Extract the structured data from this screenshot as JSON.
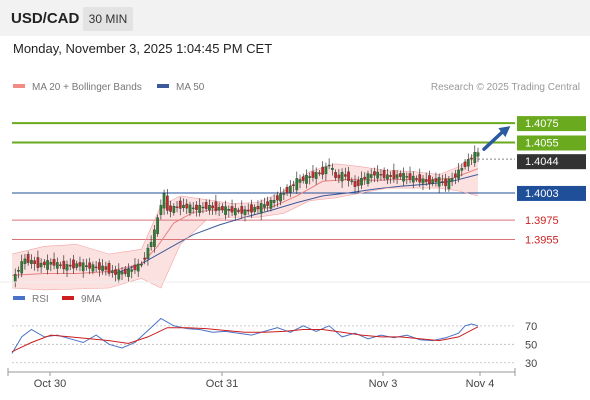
{
  "header": {
    "symbol": "USD/CAD",
    "timeframe": "30 MIN",
    "datetime": "Monday, November 3, 2025 1:04:45 PM CET"
  },
  "colors": {
    "up": "#2e7d32",
    "down": "#c62828",
    "bollinger": "#f4a3a3",
    "band_fill": "#fbd9d9",
    "ma50": "#3c5a99",
    "green_line": "#6aaa1e",
    "blue_line": "#1f4f99",
    "red_line": "#d9747a",
    "rsi": "#4a72c8",
    "rsi_ma": "#cc1f1f",
    "arrow": "#2c5aa0",
    "label_dark": "#333333"
  },
  "chart_data": [
    {
      "type": "candlestick",
      "instrument": "USD/CAD",
      "timeframe": "30 MIN",
      "legend": [
        {
          "name": "MA 20 + Bollinger Bands",
          "color": "#f28b82"
        },
        {
          "name": "MA 50",
          "color": "#3c5a99"
        }
      ],
      "source_note": "Research © 2025 Trading Central",
      "x_ticks": [
        "Oct 30",
        "Oct 31",
        "Nov 3",
        "Nov 4"
      ],
      "ylim": [
        1.3905,
        1.4105
      ],
      "price_levels": [
        {
          "label": "1.4075",
          "value": 1.4075,
          "color": "#6aaa1e",
          "style": "green-line"
        },
        {
          "label": "1.4055",
          "value": 1.4055,
          "color": "#6aaa1e",
          "style": "green-line"
        },
        {
          "label": "1.4044",
          "value": 1.4044,
          "color": "#333333",
          "style": "current-price"
        },
        {
          "label": "1.4003",
          "value": 1.4003,
          "color": "#1f4f99",
          "style": "blue-line"
        },
        {
          "label": "1.3975",
          "value": 1.3975,
          "color": "#d9747a",
          "style": "red-line"
        },
        {
          "label": "1.3955",
          "value": 1.3955,
          "color": "#d9747a",
          "style": "red-line"
        }
      ],
      "close_path": [
        [
          0,
          1.3912
        ],
        [
          2,
          1.3925
        ],
        [
          4,
          1.3935
        ],
        [
          8,
          1.3929
        ],
        [
          12,
          1.3931
        ],
        [
          16,
          1.3927
        ],
        [
          20,
          1.3929
        ],
        [
          24,
          1.3927
        ],
        [
          28,
          1.3926
        ],
        [
          32,
          1.392
        ],
        [
          36,
          1.3922
        ],
        [
          40,
          1.393
        ],
        [
          42,
          1.3945
        ],
        [
          44,
          1.3962
        ],
        [
          46,
          1.3992
        ],
        [
          47,
          1.4
        ],
        [
          48,
          1.3985
        ],
        [
          52,
          1.399
        ],
        [
          56,
          1.3987
        ],
        [
          60,
          1.3989
        ],
        [
          64,
          1.3987
        ],
        [
          68,
          1.3985
        ],
        [
          72,
          1.3984
        ],
        [
          76,
          1.3988
        ],
        [
          80,
          1.3993
        ],
        [
          84,
          1.4003
        ],
        [
          88,
          1.4015
        ],
        [
          92,
          1.402
        ],
        [
          96,
          1.4025
        ],
        [
          98,
          1.4033
        ],
        [
          100,
          1.4018
        ],
        [
          102,
          1.4022
        ],
        [
          104,
          1.4018
        ],
        [
          106,
          1.401
        ],
        [
          108,
          1.4017
        ],
        [
          112,
          1.4023
        ],
        [
          116,
          1.402
        ],
        [
          120,
          1.4021
        ],
        [
          124,
          1.4018
        ],
        [
          128,
          1.4015
        ],
        [
          132,
          1.4016
        ],
        [
          134,
          1.4012
        ],
        [
          136,
          1.4018
        ],
        [
          138,
          1.4025
        ],
        [
          140,
          1.4033
        ],
        [
          142,
          1.404
        ],
        [
          144,
          1.4044
        ]
      ],
      "ma20_path": [
        [
          0,
          1.3918
        ],
        [
          10,
          1.392
        ],
        [
          20,
          1.392
        ],
        [
          30,
          1.3922
        ],
        [
          40,
          1.393
        ],
        [
          45,
          1.3948
        ],
        [
          50,
          1.3972
        ],
        [
          56,
          1.3983
        ],
        [
          64,
          1.3986
        ],
        [
          72,
          1.3985
        ],
        [
          80,
          1.3988
        ],
        [
          88,
          1.4
        ],
        [
          96,
          1.4015
        ],
        [
          104,
          1.4017
        ],
        [
          112,
          1.4016
        ],
        [
          120,
          1.4017
        ],
        [
          128,
          1.4016
        ],
        [
          136,
          1.4018
        ],
        [
          144,
          1.4028
        ]
      ],
      "bollinger_upper_path": [
        [
          0,
          1.394
        ],
        [
          10,
          1.3948
        ],
        [
          20,
          1.395
        ],
        [
          30,
          1.394
        ],
        [
          40,
          1.3945
        ],
        [
          46,
          1.399
        ],
        [
          52,
          1.4
        ],
        [
          60,
          1.3996
        ],
        [
          68,
          1.3992
        ],
        [
          76,
          1.3993
        ],
        [
          84,
          1.4005
        ],
        [
          92,
          1.4025
        ],
        [
          100,
          1.4033
        ],
        [
          108,
          1.403
        ],
        [
          116,
          1.4026
        ],
        [
          124,
          1.4025
        ],
        [
          132,
          1.4022
        ],
        [
          138,
          1.403
        ],
        [
          144,
          1.4046
        ]
      ],
      "bollinger_lower_path": [
        [
          0,
          1.3905
        ],
        [
          10,
          1.3903
        ],
        [
          20,
          1.3904
        ],
        [
          30,
          1.3905
        ],
        [
          40,
          1.3915
        ],
        [
          46,
          1.3905
        ],
        [
          52,
          1.395
        ],
        [
          60,
          1.3975
        ],
        [
          68,
          1.3978
        ],
        [
          76,
          1.3978
        ],
        [
          84,
          1.3982
        ],
        [
          92,
          1.3995
        ],
        [
          100,
          1.3998
        ],
        [
          108,
          1.4003
        ],
        [
          116,
          1.4008
        ],
        [
          124,
          1.4008
        ],
        [
          132,
          1.4008
        ],
        [
          138,
          1.4005
        ],
        [
          144,
          1.4
        ]
      ],
      "ma50_path": [
        [
          32,
          1.392
        ],
        [
          40,
          1.393
        ],
        [
          48,
          1.3945
        ],
        [
          56,
          1.396
        ],
        [
          64,
          1.397
        ],
        [
          72,
          1.3978
        ],
        [
          80,
          1.3985
        ],
        [
          88,
          1.3993
        ],
        [
          96,
          1.4
        ],
        [
          104,
          1.4003
        ],
        [
          112,
          1.4007
        ],
        [
          120,
          1.401
        ],
        [
          128,
          1.4012
        ],
        [
          136,
          1.4015
        ],
        [
          144,
          1.4022
        ]
      ],
      "projection": {
        "from": [
          144,
          1.4044
        ],
        "to": [
          154,
          1.4075
        ]
      }
    },
    {
      "type": "line",
      "title": "RSI",
      "legend": [
        {
          "name": "RSI",
          "color": "#4a72c8"
        },
        {
          "name": "9MA",
          "color": "#cc1f1f"
        }
      ],
      "y_ticks": [
        70,
        50,
        30
      ],
      "ylim": [
        20,
        85
      ],
      "series": [
        {
          "name": "RSI",
          "points": [
            [
              0,
              40
            ],
            [
              3,
              58
            ],
            [
              6,
              66
            ],
            [
              10,
              58
            ],
            [
              14,
              60
            ],
            [
              18,
              56
            ],
            [
              22,
              52
            ],
            [
              26,
              60
            ],
            [
              30,
              50
            ],
            [
              34,
              46
            ],
            [
              38,
              52
            ],
            [
              42,
              65
            ],
            [
              46,
              78
            ],
            [
              50,
              70
            ],
            [
              54,
              67
            ],
            [
              58,
              66
            ],
            [
              62,
              63
            ],
            [
              66,
              64
            ],
            [
              70,
              62
            ],
            [
              74,
              60
            ],
            [
              78,
              64
            ],
            [
              82,
              68
            ],
            [
              86,
              63
            ],
            [
              90,
              70
            ],
            [
              94,
              64
            ],
            [
              98,
              70
            ],
            [
              102,
              58
            ],
            [
              106,
              62
            ],
            [
              110,
              56
            ],
            [
              114,
              60
            ],
            [
              118,
              57
            ],
            [
              122,
              60
            ],
            [
              126,
              55
            ],
            [
              130,
              54
            ],
            [
              134,
              57
            ],
            [
              138,
              62
            ],
            [
              140,
              70
            ],
            [
              142,
              72
            ],
            [
              144,
              70
            ]
          ]
        },
        {
          "name": "9MA",
          "points": [
            [
              0,
              42
            ],
            [
              6,
              52
            ],
            [
              12,
              60
            ],
            [
              18,
              58
            ],
            [
              24,
              56
            ],
            [
              30,
              54
            ],
            [
              36,
              51
            ],
            [
              42,
              58
            ],
            [
              48,
              68
            ],
            [
              54,
              68
            ],
            [
              60,
              67
            ],
            [
              66,
              65
            ],
            [
              72,
              63
            ],
            [
              78,
              63
            ],
            [
              84,
              64
            ],
            [
              90,
              66
            ],
            [
              96,
              66
            ],
            [
              102,
              63
            ],
            [
              108,
              60
            ],
            [
              114,
              58
            ],
            [
              120,
              58
            ],
            [
              126,
              56
            ],
            [
              132,
              54
            ],
            [
              138,
              58
            ],
            [
              144,
              69
            ]
          ]
        }
      ]
    }
  ]
}
